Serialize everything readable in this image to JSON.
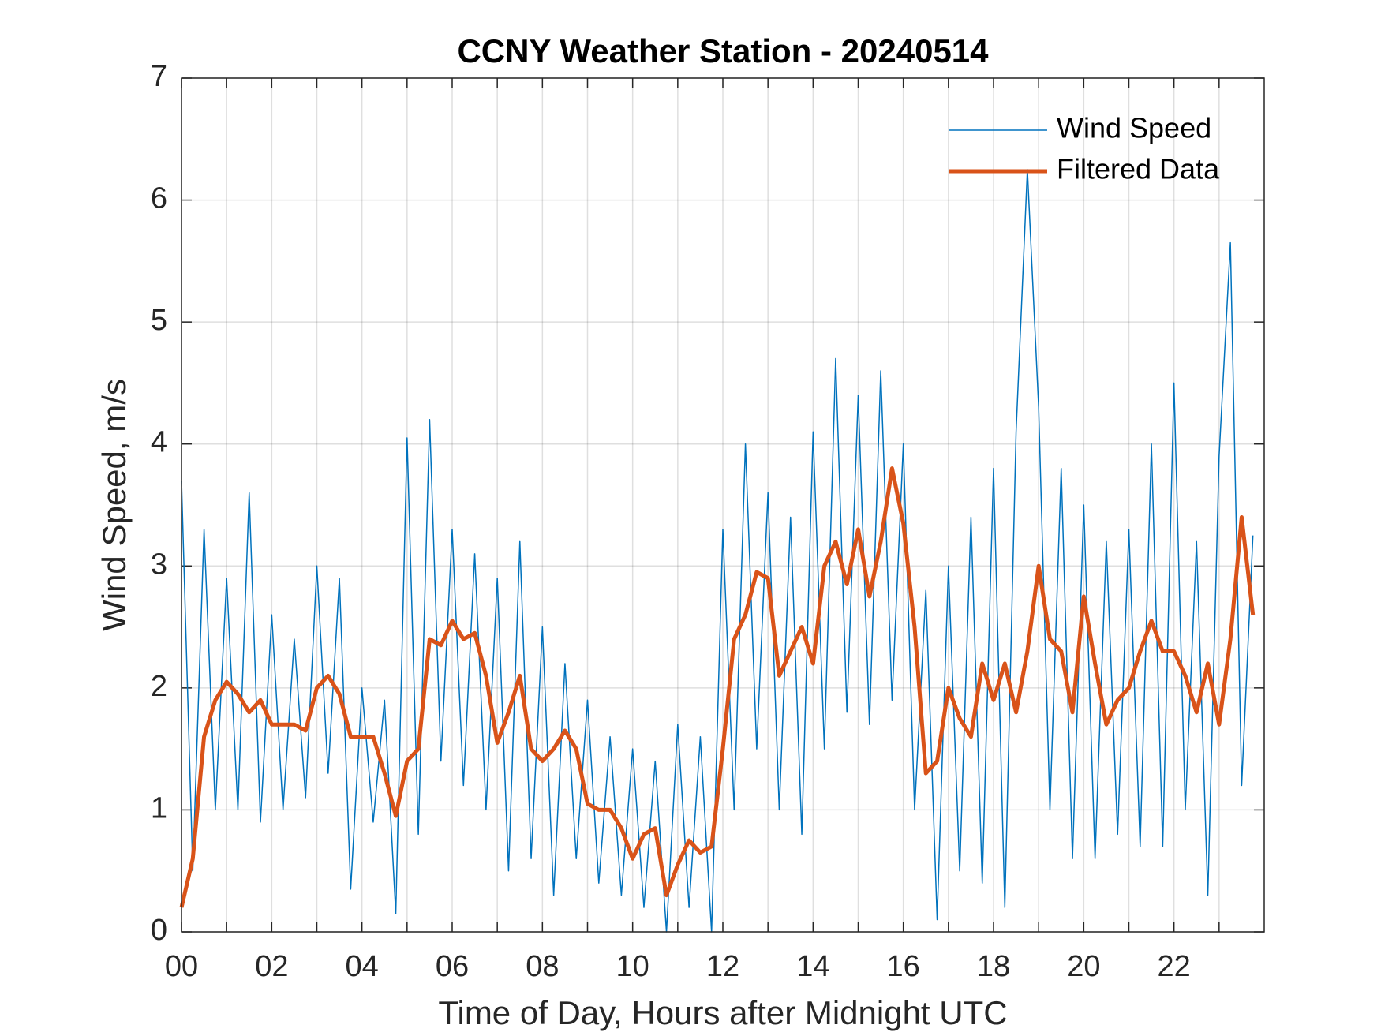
{
  "chart_data": {
    "type": "line",
    "title": "CCNY Weather Station - 20240514",
    "xlabel": "Time of Day, Hours after Midnight UTC",
    "ylabel": "Wind Speed, m/s",
    "x": [
      0,
      0.25,
      0.5,
      0.75,
      1,
      1.25,
      1.5,
      1.75,
      2,
      2.25,
      2.5,
      2.75,
      3,
      3.25,
      3.5,
      3.75,
      4,
      4.25,
      4.5,
      4.75,
      5,
      5.25,
      5.5,
      5.75,
      6,
      6.25,
      6.5,
      6.75,
      7,
      7.25,
      7.5,
      7.75,
      8,
      8.25,
      8.5,
      8.75,
      9,
      9.25,
      9.5,
      9.75,
      10,
      10.25,
      10.5,
      10.75,
      11,
      11.25,
      11.5,
      11.75,
      12,
      12.25,
      12.5,
      12.75,
      13,
      13.25,
      13.5,
      13.75,
      14,
      14.25,
      14.5,
      14.75,
      15,
      15.25,
      15.5,
      15.75,
      16,
      16.25,
      16.5,
      16.75,
      17,
      17.25,
      17.5,
      17.75,
      18,
      18.25,
      18.5,
      18.75,
      19,
      19.25,
      19.5,
      19.75,
      20,
      20.25,
      20.5,
      20.75,
      21,
      21.25,
      21.5,
      21.75,
      22,
      22.25,
      22.5,
      22.75,
      23,
      23.25,
      23.5,
      23.75
    ],
    "series": [
      {
        "name": "Wind Speed",
        "color": "#0072bd",
        "width": 1.5,
        "values": [
          3.7,
          0.5,
          3.3,
          1.0,
          2.9,
          1.0,
          3.6,
          0.9,
          2.6,
          1.0,
          2.4,
          1.1,
          3.0,
          1.3,
          2.9,
          0.35,
          2.0,
          0.9,
          1.9,
          0.15,
          4.05,
          0.8,
          4.2,
          1.4,
          3.3,
          1.2,
          3.1,
          1.0,
          2.9,
          0.5,
          3.2,
          0.6,
          2.5,
          0.3,
          2.2,
          0.6,
          1.9,
          0.4,
          1.6,
          0.3,
          1.5,
          0.2,
          1.4,
          0.0,
          1.7,
          0.2,
          1.6,
          0.0,
          3.3,
          1.0,
          4.0,
          1.5,
          3.6,
          1.0,
          3.4,
          0.8,
          4.1,
          1.5,
          4.7,
          1.8,
          4.4,
          1.7,
          4.6,
          1.9,
          4.0,
          1.0,
          2.8,
          0.1,
          3.0,
          0.5,
          3.4,
          0.4,
          3.8,
          0.2,
          4.1,
          6.25,
          4.3,
          1.0,
          3.8,
          0.6,
          3.5,
          0.6,
          3.2,
          0.8,
          3.3,
          0.7,
          4.0,
          0.7,
          4.5,
          1.0,
          3.2,
          0.3,
          3.9,
          5.65,
          1.2,
          3.25
        ]
      },
      {
        "name": "Filtered Data",
        "color": "#d95319",
        "width": 5,
        "values": [
          0.2,
          0.6,
          1.6,
          1.9,
          2.05,
          1.95,
          1.8,
          1.9,
          1.7,
          1.7,
          1.7,
          1.65,
          2.0,
          2.1,
          1.95,
          1.6,
          1.6,
          1.6,
          1.3,
          0.95,
          1.4,
          1.5,
          2.4,
          2.35,
          2.55,
          2.4,
          2.45,
          2.1,
          1.55,
          1.8,
          2.1,
          1.5,
          1.4,
          1.5,
          1.65,
          1.5,
          1.05,
          1.0,
          1.0,
          0.85,
          0.6,
          0.8,
          0.85,
          0.3,
          0.55,
          0.75,
          0.65,
          0.7,
          1.5,
          2.4,
          2.6,
          2.95,
          2.9,
          2.1,
          2.3,
          2.5,
          2.2,
          3.0,
          3.2,
          2.85,
          3.3,
          2.75,
          3.2,
          3.8,
          3.35,
          2.5,
          1.3,
          1.4,
          2.0,
          1.75,
          1.6,
          2.2,
          1.9,
          2.2,
          1.8,
          2.3,
          3.0,
          2.4,
          2.3,
          1.8,
          2.75,
          2.2,
          1.7,
          1.9,
          2.0,
          2.3,
          2.55,
          2.3,
          2.3,
          2.1,
          1.8,
          2.2,
          1.7,
          2.4,
          3.4,
          2.6
        ]
      }
    ],
    "xlim": [
      0,
      24
    ],
    "ylim": [
      0,
      7
    ],
    "xticks": [
      {
        "value": 0,
        "label": "00"
      },
      {
        "value": 2,
        "label": "02"
      },
      {
        "value": 4,
        "label": "04"
      },
      {
        "value": 6,
        "label": "06"
      },
      {
        "value": 8,
        "label": "08"
      },
      {
        "value": 10,
        "label": "10"
      },
      {
        "value": 12,
        "label": "12"
      },
      {
        "value": 14,
        "label": "14"
      },
      {
        "value": 16,
        "label": "16"
      },
      {
        "value": 18,
        "label": "18"
      },
      {
        "value": 20,
        "label": "20"
      },
      {
        "value": 22,
        "label": "22"
      }
    ],
    "xminorticks": [
      1,
      3,
      5,
      7,
      9,
      11,
      13,
      15,
      17,
      19,
      21,
      23
    ],
    "yticks": [
      0,
      1,
      2,
      3,
      4,
      5,
      6,
      7
    ],
    "grid": true,
    "legend": "top-right"
  }
}
